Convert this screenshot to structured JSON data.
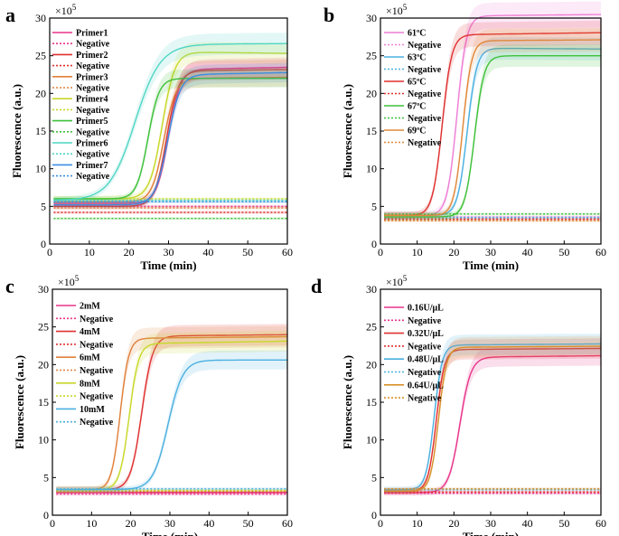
{
  "chart_data": [
    {
      "panel": "a",
      "type": "line",
      "multiplier": "×10",
      "exponent": "5",
      "xlabel": "Time (min)",
      "ylabel": "Fluorescence (a.u.)",
      "xlim": [
        0,
        60
      ],
      "ylim": [
        0,
        30
      ],
      "xticks": [
        0,
        10,
        20,
        30,
        40,
        50,
        60
      ],
      "yticks": [
        0,
        5,
        10,
        15,
        20,
        25,
        30
      ],
      "legend_position": "top-left",
      "series": [
        {
          "name": "Primer1",
          "color": "#e8348a",
          "dashed": false,
          "base": 5.4,
          "plateau": 23.2,
          "midpoint": 30.0,
          "width": 1.5,
          "drift": 0.6
        },
        {
          "name": "Negative",
          "color": "#e8348a",
          "dashed": true,
          "base": 5.0,
          "plateau": 5.0,
          "midpoint": 0,
          "width": 1,
          "drift": 0
        },
        {
          "name": "Primer2",
          "color": "#e03030",
          "dashed": false,
          "base": 5.0,
          "plateau": 23.0,
          "midpoint": 29.5,
          "width": 1.5,
          "drift": 0.4
        },
        {
          "name": "Negative",
          "color": "#e03030",
          "dashed": true,
          "base": 4.2,
          "plateau": 4.2,
          "midpoint": 0,
          "width": 1,
          "drift": 0
        },
        {
          "name": "Primer3",
          "color": "#e0803a",
          "dashed": false,
          "base": 5.6,
          "plateau": 22.0,
          "midpoint": 28.8,
          "width": 1.5,
          "drift": 0.3
        },
        {
          "name": "Negative",
          "color": "#e0803a",
          "dashed": true,
          "base": 4.8,
          "plateau": 4.8,
          "midpoint": 0,
          "width": 1,
          "drift": 0
        },
        {
          "name": "Primer4",
          "color": "#c8d82a",
          "dashed": false,
          "base": 6.0,
          "plateau": 25.5,
          "midpoint": 28.4,
          "width": 1.6,
          "drift": -0.4
        },
        {
          "name": "Negative",
          "color": "#c8d82a",
          "dashed": true,
          "base": 6.0,
          "plateau": 6.0,
          "midpoint": 0,
          "width": 1,
          "drift": 0
        },
        {
          "name": "Primer5",
          "color": "#3ec03a",
          "dashed": false,
          "base": 6.0,
          "plateau": 22.0,
          "midpoint": 24.8,
          "width": 1.4,
          "drift": 0.0
        },
        {
          "name": "Negative",
          "color": "#3ec03a",
          "dashed": true,
          "base": 3.4,
          "plateau": 3.4,
          "midpoint": 0,
          "width": 1,
          "drift": 0
        },
        {
          "name": "Primer6",
          "color": "#4fd6c4",
          "dashed": false,
          "base": 5.8,
          "plateau": 26.5,
          "midpoint": 21.5,
          "width": 3.2,
          "drift": 0.2
        },
        {
          "name": "Negative",
          "color": "#4fd6c4",
          "dashed": true,
          "base": 5.8,
          "plateau": 5.8,
          "midpoint": 0,
          "width": 1,
          "drift": 0
        },
        {
          "name": "Primer7",
          "color": "#3a8fe0",
          "dashed": false,
          "base": 5.2,
          "plateau": 22.5,
          "midpoint": 29.8,
          "width": 1.6,
          "drift": 0.6
        },
        {
          "name": "Negative",
          "color": "#3a8fe0",
          "dashed": true,
          "base": 5.6,
          "plateau": 5.6,
          "midpoint": 0,
          "width": 1,
          "drift": 0
        }
      ]
    },
    {
      "panel": "b",
      "type": "line",
      "multiplier": "×10",
      "exponent": "5",
      "xlabel": "Time (min)",
      "ylabel": "Fluorescence (a.u.)",
      "xlim": [
        0,
        60
      ],
      "ylim": [
        0,
        30
      ],
      "xticks": [
        0,
        10,
        20,
        30,
        40,
        50,
        60
      ],
      "yticks": [
        0,
        5,
        10,
        15,
        20,
        25,
        30
      ],
      "legend_position": "top-left",
      "series": [
        {
          "name": "61ºC",
          "color": "#ee7fd6",
          "dashed": false,
          "base": 3.8,
          "plateau": 30.3,
          "midpoint": 20.8,
          "width": 1.3,
          "drift": 0.3
        },
        {
          "name": "Negative",
          "color": "#ee7fd6",
          "dashed": true,
          "base": 3.6,
          "plateau": 3.6,
          "midpoint": 0,
          "width": 1,
          "drift": 0
        },
        {
          "name": "63ºC",
          "color": "#4ab0e0",
          "dashed": false,
          "base": 3.8,
          "plateau": 26.0,
          "midpoint": 23.6,
          "width": 1.3,
          "drift": -0.2
        },
        {
          "name": "Negative",
          "color": "#4ab0e0",
          "dashed": true,
          "base": 3.5,
          "plateau": 3.5,
          "midpoint": 0,
          "width": 1,
          "drift": 0
        },
        {
          "name": "65ºC",
          "color": "#e03030",
          "dashed": false,
          "base": 3.8,
          "plateau": 27.8,
          "midpoint": 16.8,
          "width": 1.3,
          "drift": 0.4
        },
        {
          "name": "Negative",
          "color": "#e03030",
          "dashed": true,
          "base": 3.3,
          "plateau": 3.3,
          "midpoint": 0,
          "width": 1,
          "drift": 0
        },
        {
          "name": "67ºC",
          "color": "#3ec03a",
          "dashed": false,
          "base": 3.6,
          "plateau": 25.0,
          "midpoint": 25.6,
          "width": 1.3,
          "drift": 0.0
        },
        {
          "name": "Negative",
          "color": "#3ec03a",
          "dashed": true,
          "base": 4.0,
          "plateau": 4.0,
          "midpoint": 0,
          "width": 1,
          "drift": 0
        },
        {
          "name": "69ºC",
          "color": "#e0883a",
          "dashed": false,
          "base": 3.8,
          "plateau": 27.0,
          "midpoint": 22.4,
          "width": 1.2,
          "drift": 0.2
        },
        {
          "name": "Negative",
          "color": "#e0883a",
          "dashed": true,
          "base": 3.1,
          "plateau": 3.1,
          "midpoint": 0,
          "width": 1,
          "drift": 0
        }
      ]
    },
    {
      "panel": "c",
      "type": "line",
      "multiplier": "×10",
      "exponent": "5",
      "xlabel": "Time (min)",
      "ylabel": "Fluorescence (a.u.)",
      "xlim": [
        0,
        60
      ],
      "ylim": [
        0,
        30
      ],
      "xticks": [
        0,
        10,
        20,
        30,
        40,
        50,
        60
      ],
      "yticks": [
        0,
        5,
        10,
        15,
        20,
        25,
        30
      ],
      "legend_position": "top-left",
      "series": [
        {
          "name": "2mM",
          "color": "#e8348a",
          "dashed": false,
          "base": 3.0,
          "plateau": 3.0,
          "midpoint": 0,
          "width": 1,
          "drift": 0
        },
        {
          "name": "Negative",
          "color": "#e8348a",
          "dashed": true,
          "base": 2.8,
          "plateau": 2.8,
          "midpoint": 0,
          "width": 1,
          "drift": 0
        },
        {
          "name": "4mM",
          "color": "#e03030",
          "dashed": false,
          "base": 3.4,
          "plateau": 23.8,
          "midpoint": 22.8,
          "width": 1.4,
          "drift": 0.3
        },
        {
          "name": "Negative",
          "color": "#e03030",
          "dashed": true,
          "base": 3.1,
          "plateau": 3.1,
          "midpoint": 0,
          "width": 1,
          "drift": 0
        },
        {
          "name": "6mM",
          "color": "#e0803a",
          "dashed": false,
          "base": 3.4,
          "plateau": 23.5,
          "midpoint": 17.3,
          "width": 1.1,
          "drift": 0.3
        },
        {
          "name": "Negative",
          "color": "#e0803a",
          "dashed": true,
          "base": 3.2,
          "plateau": 3.2,
          "midpoint": 0,
          "width": 1,
          "drift": 0
        },
        {
          "name": "8mM",
          "color": "#c8d82a",
          "dashed": false,
          "base": 3.4,
          "plateau": 22.8,
          "midpoint": 19.6,
          "width": 1.2,
          "drift": 0.5
        },
        {
          "name": "Negative",
          "color": "#c8d82a",
          "dashed": true,
          "base": 3.3,
          "plateau": 3.3,
          "midpoint": 0,
          "width": 1,
          "drift": 0
        },
        {
          "name": "10mM",
          "color": "#4ab0e0",
          "dashed": false,
          "base": 3.4,
          "plateau": 20.6,
          "midpoint": 29.5,
          "width": 1.9,
          "drift": 0.0
        },
        {
          "name": "Negative",
          "color": "#4ab0e0",
          "dashed": true,
          "base": 3.5,
          "plateau": 3.5,
          "midpoint": 0,
          "width": 1,
          "drift": 0
        }
      ]
    },
    {
      "panel": "d",
      "type": "line",
      "multiplier": "×10",
      "exponent": "5",
      "xlabel": "Time (min)",
      "ylabel": "Fluorescence (a.u.)",
      "xlim": [
        0,
        60
      ],
      "ylim": [
        0,
        30
      ],
      "xticks": [
        0,
        10,
        20,
        30,
        40,
        50,
        60
      ],
      "yticks": [
        0,
        5,
        10,
        15,
        20,
        25,
        30
      ],
      "legend_position": "top-left",
      "series": [
        {
          "name": "0.16U/μL",
          "color": "#e8348a",
          "dashed": false,
          "base": 3.0,
          "plateau": 21.0,
          "midpoint": 21.6,
          "width": 1.5,
          "drift": 0.3
        },
        {
          "name": "Negative",
          "color": "#e8348a",
          "dashed": true,
          "base": 2.9,
          "plateau": 2.9,
          "midpoint": 0,
          "width": 1,
          "drift": 0
        },
        {
          "name": "0.32U/μL",
          "color": "#e03030",
          "dashed": false,
          "base": 3.2,
          "plateau": 22.0,
          "midpoint": 15.2,
          "width": 1.1,
          "drift": 0.2
        },
        {
          "name": "Negative",
          "color": "#e03030",
          "dashed": true,
          "base": 3.1,
          "plateau": 3.1,
          "midpoint": 0,
          "width": 1,
          "drift": 0
        },
        {
          "name": "0.48U/μL",
          "color": "#4ab0e0",
          "dashed": false,
          "base": 3.4,
          "plateau": 22.6,
          "midpoint": 14.6,
          "width": 1.1,
          "drift": 0.2
        },
        {
          "name": "Negative",
          "color": "#4ab0e0",
          "dashed": true,
          "base": 3.4,
          "plateau": 3.4,
          "midpoint": 0,
          "width": 1,
          "drift": 0
        },
        {
          "name": "0.64U/μL",
          "color": "#d8902a",
          "dashed": false,
          "base": 3.2,
          "plateau": 22.3,
          "midpoint": 15.8,
          "width": 1.1,
          "drift": 0.2
        },
        {
          "name": "Negative",
          "color": "#d8902a",
          "dashed": true,
          "base": 3.5,
          "plateau": 3.5,
          "midpoint": 0,
          "width": 1,
          "drift": 0
        }
      ]
    }
  ]
}
